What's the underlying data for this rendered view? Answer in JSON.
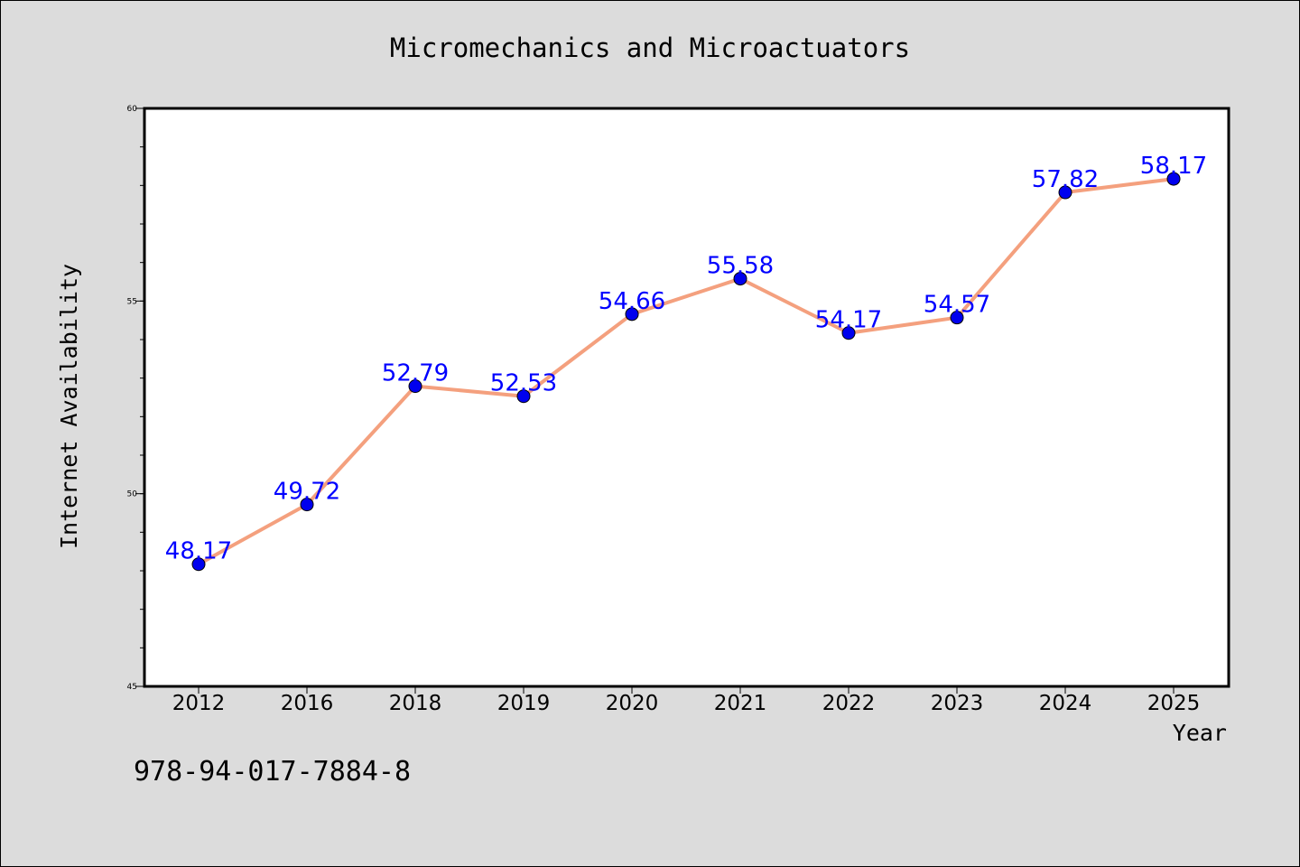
{
  "chart_data": {
    "type": "line",
    "title": "Micromechanics and Microactuators",
    "xlabel": "Year",
    "ylabel": "Internet Availability",
    "categories": [
      "2012",
      "2016",
      "2018",
      "2019",
      "2020",
      "2021",
      "2022",
      "2023",
      "2024",
      "2025"
    ],
    "series": [
      {
        "values": [
          48.17,
          49.72,
          52.79,
          52.53,
          54.66,
          55.58,
          54.17,
          54.57,
          57.82,
          58.17
        ],
        "labels": [
          "48.17",
          "49.72",
          "52.79",
          "52.53",
          "54.66",
          "55.58",
          "54.17",
          "54.57",
          "57.82",
          "58.17"
        ]
      }
    ],
    "ylim": [
      45,
      60
    ],
    "yticks": [
      "45",
      "50",
      "55",
      "60"
    ],
    "grid": false,
    "legend": "none",
    "colors": {
      "line": "#f4a07e",
      "marker": "#0000ee",
      "label": "#0000ff",
      "plot_bg": "#ffffff",
      "page_bg": "#dcdcdc"
    }
  },
  "footer_text": "978-94-017-7884-8"
}
